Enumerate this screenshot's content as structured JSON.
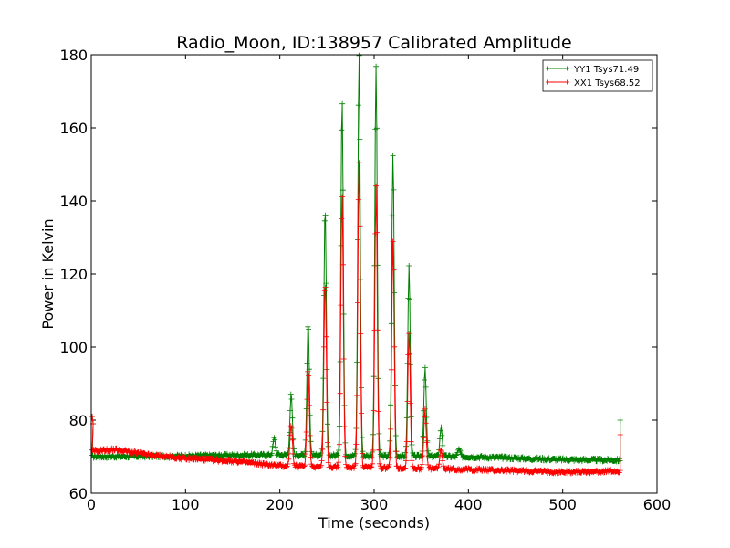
{
  "chart_data": {
    "type": "line",
    "title": "Radio_Moon, ID:138957 Calibrated Amplitude",
    "xlabel": "Time (seconds)",
    "ylabel": "Power in Kelvin",
    "xlim": [
      0,
      600
    ],
    "ylim": [
      60,
      180
    ],
    "xticks": [
      "0",
      "100",
      "200",
      "300",
      "400",
      "500",
      "600"
    ],
    "yticks": [
      "60",
      "80",
      "100",
      "120",
      "140",
      "160",
      "180"
    ],
    "grid": false,
    "legend": "top-right",
    "series": [
      {
        "name": "YY1 Tsys71.49",
        "color": "#008000",
        "baseline": [
          [
            0,
            70.0
          ],
          [
            100,
            70.2
          ],
          [
            200,
            70.5
          ],
          [
            300,
            70.2
          ],
          [
            400,
            70.0
          ],
          [
            500,
            69.2
          ],
          [
            560,
            69.0
          ]
        ],
        "start_spike": [
          2,
          81
        ],
        "end_spike": [
          561,
          80
        ],
        "peaks": [
          [
            194,
            75
          ],
          [
            212,
            87
          ],
          [
            230,
            107
          ],
          [
            248,
            138
          ],
          [
            266,
            168
          ],
          [
            284,
            180
          ],
          [
            302,
            177
          ],
          [
            320,
            153
          ],
          [
            337,
            122
          ],
          [
            354,
            94
          ],
          [
            371,
            78
          ],
          [
            390,
            72
          ]
        ]
      },
      {
        "name": "XX1 Tsys68.52",
        "color": "#ff0000",
        "baseline": [
          [
            0,
            71.5
          ],
          [
            25,
            72.0
          ],
          [
            60,
            70.5
          ],
          [
            100,
            69.5
          ],
          [
            150,
            68.8
          ],
          [
            200,
            67.5
          ],
          [
            300,
            67.0
          ],
          [
            400,
            66.5
          ],
          [
            500,
            65.8
          ],
          [
            560,
            66.0
          ]
        ],
        "start_spike": [
          2,
          81
        ],
        "end_spike": [
          561,
          76
        ],
        "peaks": [
          [
            212,
            79
          ],
          [
            230,
            94
          ],
          [
            248,
            118
          ],
          [
            266,
            142
          ],
          [
            284,
            151
          ],
          [
            302,
            144
          ],
          [
            320,
            129
          ],
          [
            337,
            104
          ],
          [
            354,
            83
          ],
          [
            371,
            72
          ]
        ]
      }
    ]
  }
}
